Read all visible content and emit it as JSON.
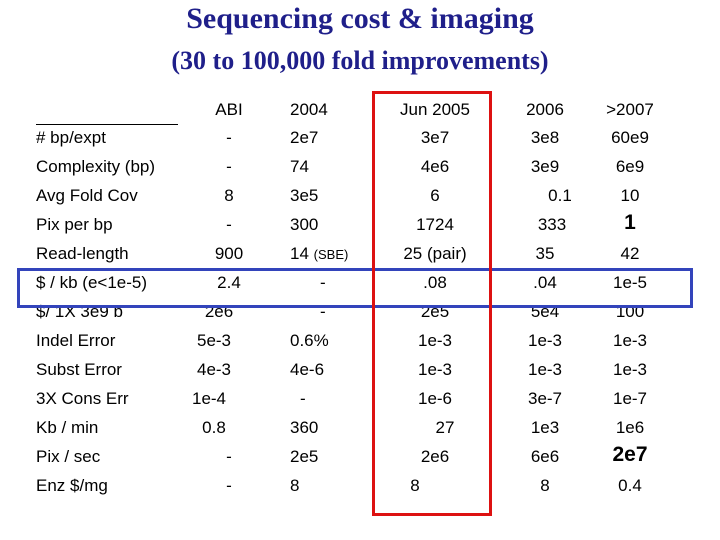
{
  "title_line1": "Sequencing cost & imaging",
  "title_line2": "(30 to 100,000 fold improvements)",
  "headers": [
    "ABI",
    "2004",
    "Jun 2005",
    "2006",
    ">2007"
  ],
  "rows": [
    {
      "label": "# bp/expt",
      "abi": "-",
      "y2004": "2e7",
      "jun2005": "3e7",
      "y2006": "3e8",
      "y2007": "60e9"
    },
    {
      "label": "Complexity (bp)",
      "abi": "-",
      "y2004": "74",
      "jun2005": "4e6",
      "y2006": "3e9",
      "y2007": "6e9"
    },
    {
      "label": "Avg Fold Cov",
      "abi": "8",
      "y2004": "3e5",
      "jun2005": "6",
      "y2006": "0.1",
      "y2007": "10"
    },
    {
      "label": "Pix per bp",
      "abi": "-",
      "y2004": "300",
      "jun2005": "1724",
      "y2006": "333",
      "y2007": "1"
    },
    {
      "label": "Read-length",
      "abi": "900",
      "y2004": "14",
      "y2004_note": "(SBE)",
      "jun2005": "25 (pair)",
      "y2006": "35",
      "y2007": "42"
    },
    {
      "label": "$ / kb (e<1e-5)",
      "abi": "2.4",
      "y2004": "-",
      "jun2005": ".08",
      "y2006": ".04",
      "y2007": "1e-5"
    },
    {
      "label": "$/ 1X 3e9 b",
      "abi": "2e6",
      "y2004": "-",
      "jun2005": "2e5",
      "y2006": "5e4",
      "y2007": "100"
    },
    {
      "label": "Indel Error",
      "abi": "5e-3",
      "y2004": "0.6%",
      "jun2005": "1e-3",
      "y2006": "1e-3",
      "y2007": "1e-3"
    },
    {
      "label": "Subst Error",
      "abi": "4e-3",
      "y2004": "4e-6",
      "jun2005": "1e-3",
      "y2006": "1e-3",
      "y2007": "1e-3"
    },
    {
      "label": "3X Cons Err",
      "abi": "1e-4",
      "y2004": "-",
      "jun2005": "1e-6",
      "y2006": "3e-7",
      "y2007": "1e-7"
    },
    {
      "label": "Kb / min",
      "abi": "0.8",
      "y2004": "360",
      "jun2005": "27",
      "y2006": "1e3",
      "y2007": "1e6"
    },
    {
      "label": "Pix / sec",
      "abi": "-",
      "y2004": "2e5",
      "jun2005": "2e6",
      "y2006": "6e6",
      "y2007": "2e7"
    },
    {
      "label": "Enz $/mg",
      "abi": "-",
      "y2004": "8",
      "jun2005": "8",
      "y2006": "8",
      "y2007": "0.4"
    }
  ],
  "colors": {
    "title": "#1f1f8a",
    "row_highlight": "#3344bb",
    "column_highlight": "#dd1111"
  }
}
